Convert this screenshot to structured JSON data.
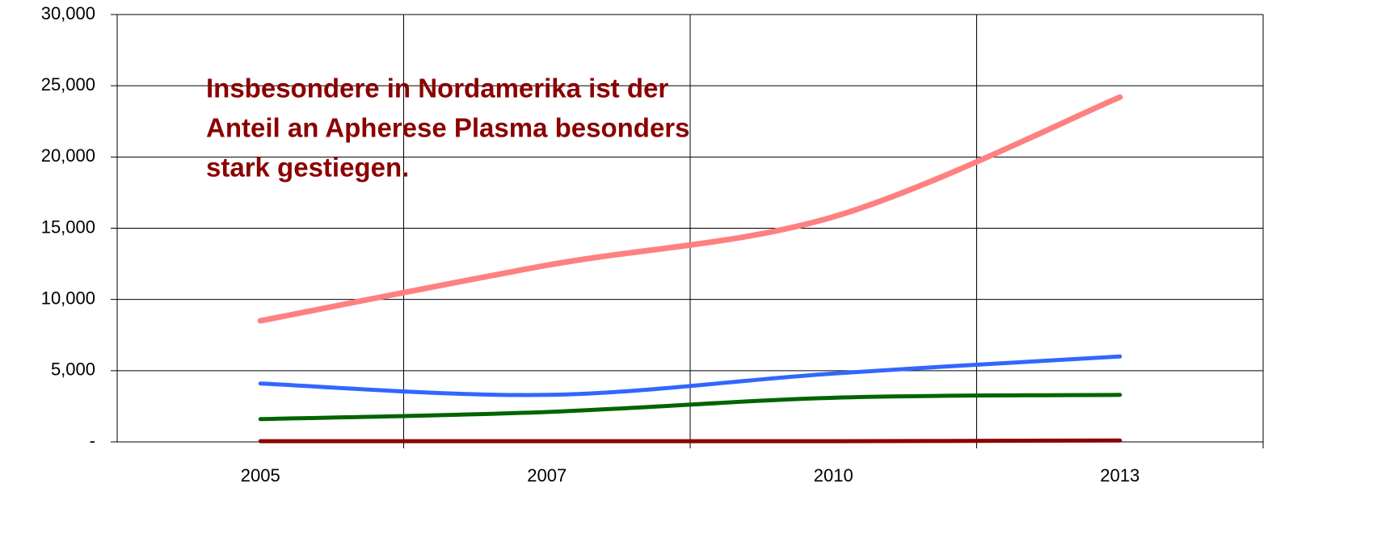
{
  "chart_data": {
    "type": "line",
    "annotation": [
      "Insbesondere in Nordamerika ist der",
      "Anteil an Apherese Plasma besonders",
      "stark gestiegen."
    ],
    "categories": [
      "2005",
      "2007",
      "2010",
      "2013"
    ],
    "series": [
      {
        "color": "#ff8080",
        "values": [
          8500,
          12400,
          15800,
          24200
        ]
      },
      {
        "color": "#3366ff",
        "values": [
          4100,
          3300,
          4800,
          6000
        ]
      },
      {
        "color": "#006400",
        "values": [
          1600,
          2100,
          3100,
          3300
        ]
      },
      {
        "color": "#8b0000",
        "values": [
          50,
          50,
          50,
          100
        ]
      }
    ],
    "ylim": [
      0,
      30000
    ],
    "yticks": [
      {
        "value": 0,
        "label": "-"
      },
      {
        "value": 5000,
        "label": "5,000"
      },
      {
        "value": 10000,
        "label": "10,000"
      },
      {
        "value": 15000,
        "label": "15,000"
      },
      {
        "value": 20000,
        "label": "20,000"
      },
      {
        "value": 25000,
        "label": "25,000"
      },
      {
        "value": 30000,
        "label": "30,000"
      }
    ],
    "grid": true
  }
}
